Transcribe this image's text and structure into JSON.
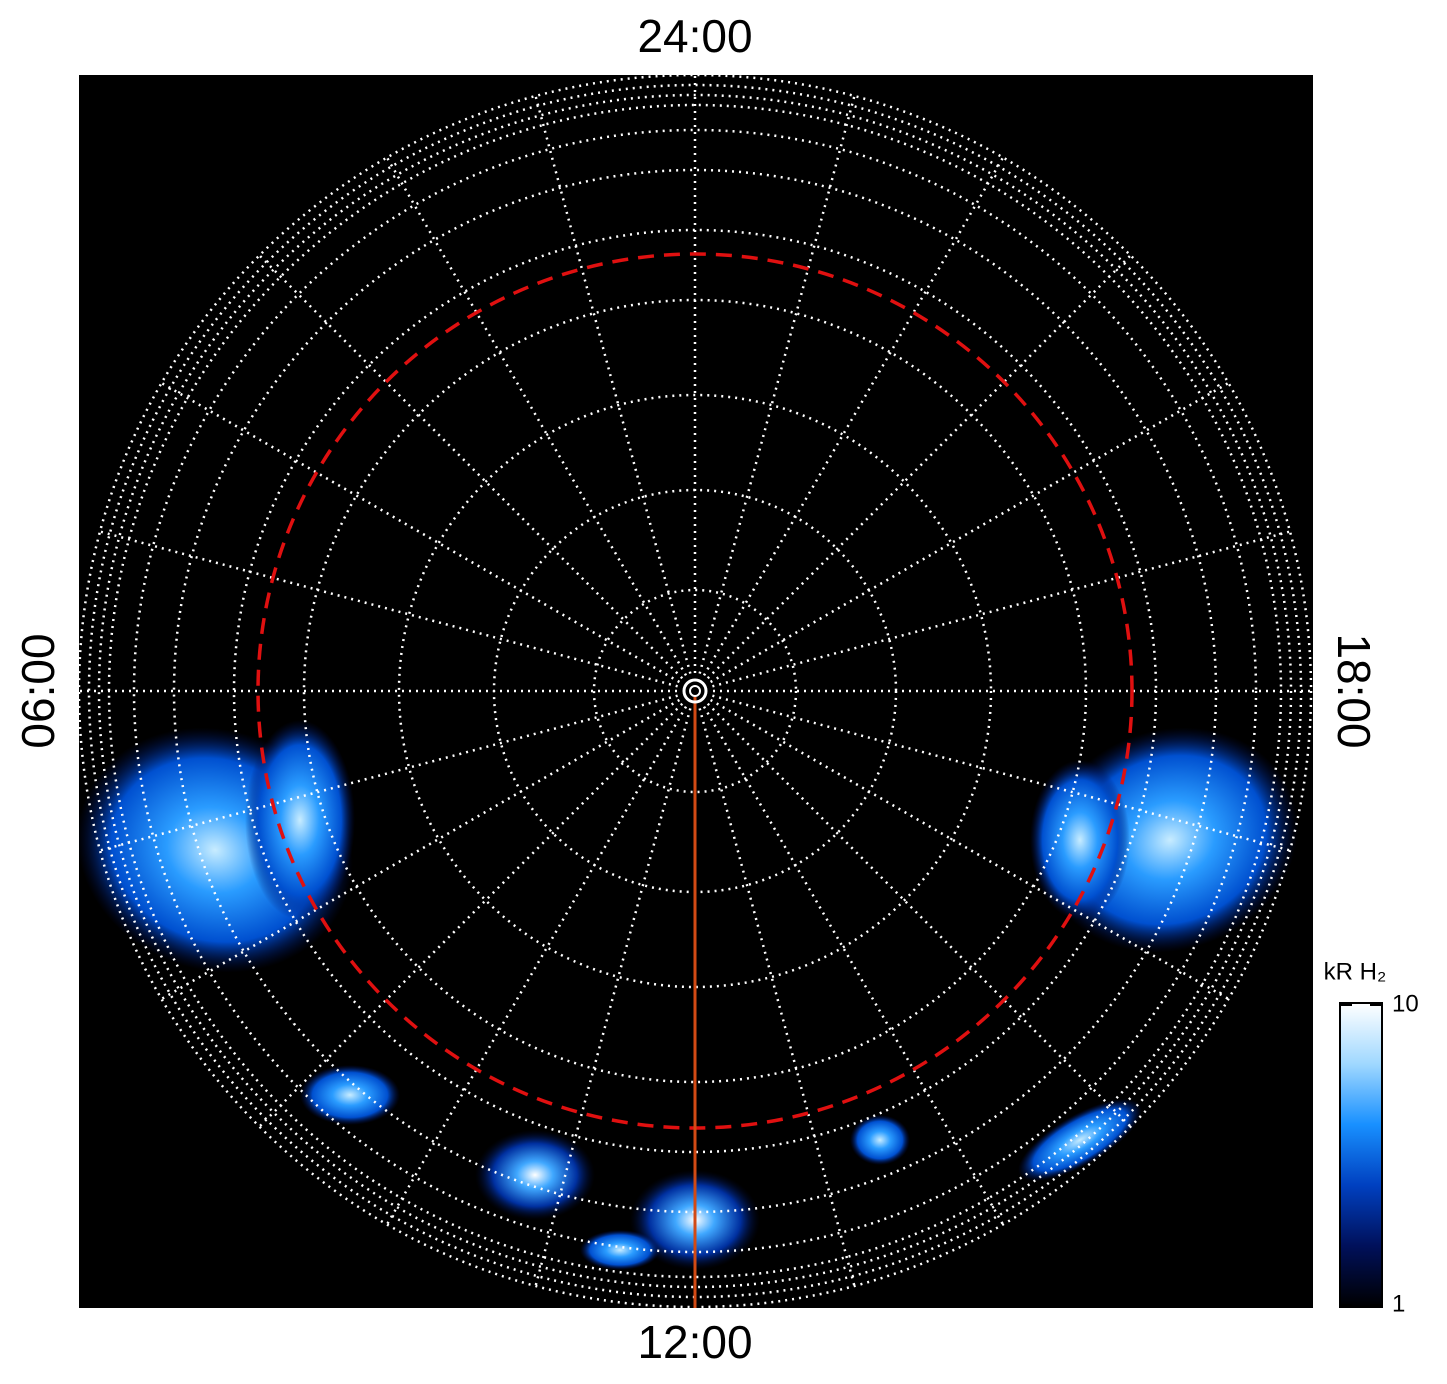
{
  "chart_data": {
    "type": "polar",
    "time_labels": {
      "top": "24:00",
      "bottom": "12:00",
      "left": "06:00",
      "right": "18:00"
    },
    "colorbar": {
      "label": "kR H₂",
      "clim": [
        1,
        10
      ],
      "ticks": [
        1,
        10
      ],
      "log": true,
      "colors": [
        "#000000",
        "#00105a",
        "#0040c0",
        "#1890ff",
        "#a0d8ff",
        "#ffffff"
      ]
    }
  }
}
